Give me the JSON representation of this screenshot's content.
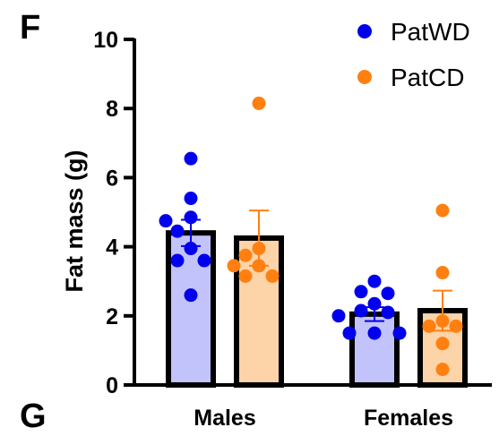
{
  "panel_labels": {
    "top": "F",
    "bottom": "G"
  },
  "chart_data": {
    "type": "bar",
    "ylabel": "Fat mass (g)",
    "xlabel": "",
    "ylim": [
      0,
      10
    ],
    "yticks": [
      0,
      2,
      4,
      6,
      8,
      10
    ],
    "categories": [
      "Males",
      "Females"
    ],
    "legend_position": "top-right",
    "series": [
      {
        "name": "PatWD",
        "dot_color": "#0000ee",
        "bar_fill": "#c3c3fb",
        "means": [
          4.4,
          2.05
        ],
        "sem": [
          0.38,
          0.2
        ],
        "points": [
          [
            6.55,
            5.4,
            4.85,
            4.75,
            4.45,
            3.95,
            3.6,
            3.6,
            2.6
          ],
          [
            3.0,
            2.7,
            2.65,
            2.35,
            2.15,
            2.1,
            2.0,
            1.5,
            1.5,
            1.5
          ]
        ]
      },
      {
        "name": "PatCD",
        "dot_color": "#ff8010",
        "bar_fill": "#fdd3a8",
        "means": [
          4.25,
          2.15
        ],
        "sem": [
          0.8,
          0.58
        ],
        "points": [
          [
            8.15,
            3.95,
            3.75,
            3.45,
            3.45,
            3.15,
            3.15
          ],
          [
            5.05,
            3.25,
            1.85,
            1.7,
            1.7,
            1.2,
            0.45
          ]
        ]
      }
    ]
  }
}
